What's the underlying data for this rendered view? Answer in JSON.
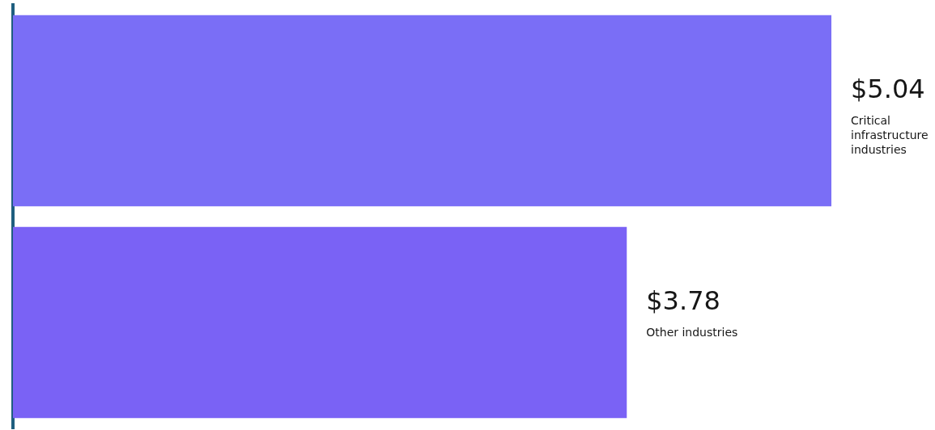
{
  "chart_data": {
    "type": "bar",
    "orientation": "horizontal",
    "categories": [
      null,
      null
    ],
    "values": [
      5.04,
      3.78
    ],
    "colors": [
      "#7a6ef6",
      "#7a62f5"
    ],
    "value_labels": [
      "$5.04",
      "$3.78"
    ],
    "annotations": [
      {
        "text": "Critical infrastructure industries",
        "x": 5.04
      },
      {
        "text": "Other industries",
        "x": 3.78
      }
    ],
    "grid": false,
    "legend": false,
    "tick_labels": false
  }
}
